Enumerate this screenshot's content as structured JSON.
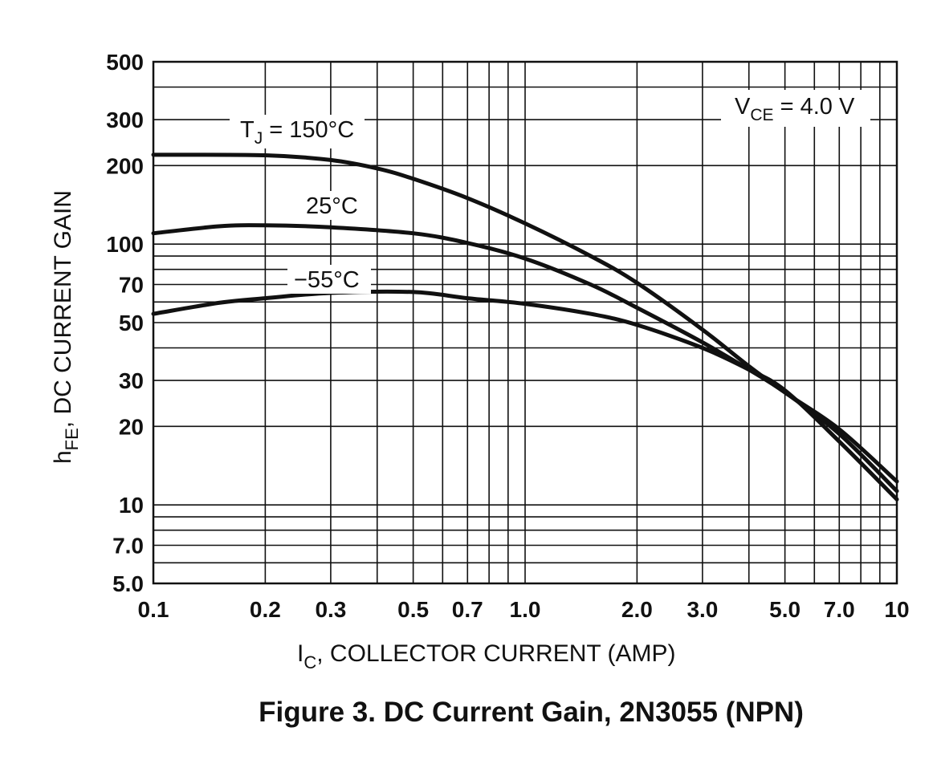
{
  "caption": "Figure 3. DC Current Gain, 2N3055 (NPN)",
  "chart_data": {
    "type": "line",
    "title": "",
    "xlabel": {
      "main": "I",
      "sub": "C",
      "rest": ", COLLECTOR CURRENT (AMP)"
    },
    "ylabel": {
      "main": "h",
      "sub": "FE",
      "rest": ", DC CURRENT GAIN"
    },
    "x_scale": "log",
    "y_scale": "log",
    "xlim": [
      0.1,
      10
    ],
    "ylim": [
      5,
      500
    ],
    "grid": true,
    "x_ticks": [
      {
        "value": 0.1,
        "label": "0.1"
      },
      {
        "value": 0.2,
        "label": "0.2"
      },
      {
        "value": 0.3,
        "label": "0.3"
      },
      {
        "value": 0.5,
        "label": "0.5"
      },
      {
        "value": 0.7,
        "label": "0.7"
      },
      {
        "value": 1.0,
        "label": "1.0"
      },
      {
        "value": 2.0,
        "label": "2.0"
      },
      {
        "value": 3.0,
        "label": "3.0"
      },
      {
        "value": 5.0,
        "label": "5.0"
      },
      {
        "value": 7.0,
        "label": "7.0"
      },
      {
        "value": 10,
        "label": "10"
      }
    ],
    "y_ticks": [
      {
        "value": 5,
        "label": "5.0"
      },
      {
        "value": 7,
        "label": "7.0"
      },
      {
        "value": 10,
        "label": "10"
      },
      {
        "value": 20,
        "label": "20"
      },
      {
        "value": 30,
        "label": "30"
      },
      {
        "value": 50,
        "label": "50"
      },
      {
        "value": 70,
        "label": "70"
      },
      {
        "value": 100,
        "label": "100"
      },
      {
        "value": 200,
        "label": "200"
      },
      {
        "value": 300,
        "label": "300"
      },
      {
        "value": 500,
        "label": "500"
      }
    ],
    "x_grid": [
      0.1,
      0.2,
      0.3,
      0.4,
      0.5,
      0.6,
      0.7,
      0.8,
      0.9,
      1,
      2,
      3,
      4,
      5,
      6,
      7,
      8,
      9,
      10
    ],
    "y_grid": [
      5,
      6,
      7,
      8,
      9,
      10,
      20,
      30,
      40,
      50,
      60,
      70,
      80,
      90,
      100,
      200,
      300,
      400,
      500
    ],
    "series": [
      {
        "name": "T_J = 150°C",
        "x": [
          0.1,
          0.2,
          0.3,
          0.4,
          0.5,
          0.7,
          1.0,
          1.5,
          2.0,
          3.0,
          4.0,
          5.0,
          7.0,
          10
        ],
        "y": [
          220,
          219,
          210,
          195,
          178,
          150,
          120,
          90,
          71,
          47,
          34,
          27,
          19.5,
          12.3
        ]
      },
      {
        "name": "25°C",
        "x": [
          0.1,
          0.15,
          0.2,
          0.3,
          0.5,
          0.7,
          1.0,
          1.5,
          2.0,
          3.0,
          4.0,
          5.0,
          7.0,
          10
        ],
        "y": [
          110,
          117,
          118,
          116,
          110,
          101,
          88,
          70,
          57,
          42,
          33,
          27,
          18.7,
          11.3
        ]
      },
      {
        "name": "−55°C",
        "x": [
          0.1,
          0.15,
          0.2,
          0.3,
          0.5,
          0.7,
          1.0,
          1.5,
          2.0,
          3.0,
          4.0,
          5.0,
          7.0,
          10
        ],
        "y": [
          54,
          59.5,
          62,
          65,
          65.5,
          62,
          59,
          54,
          49,
          40,
          33,
          27.5,
          17.5,
          10.5
        ]
      }
    ],
    "annotations": {
      "vce": {
        "main": "V",
        "sub": "CE",
        "rest": " = 4.0 V"
      },
      "tj150": {
        "main": "T",
        "sub": "J",
        "rest": " = 150°C"
      },
      "t25": "25°C",
      "tm55": "−55°C"
    }
  }
}
